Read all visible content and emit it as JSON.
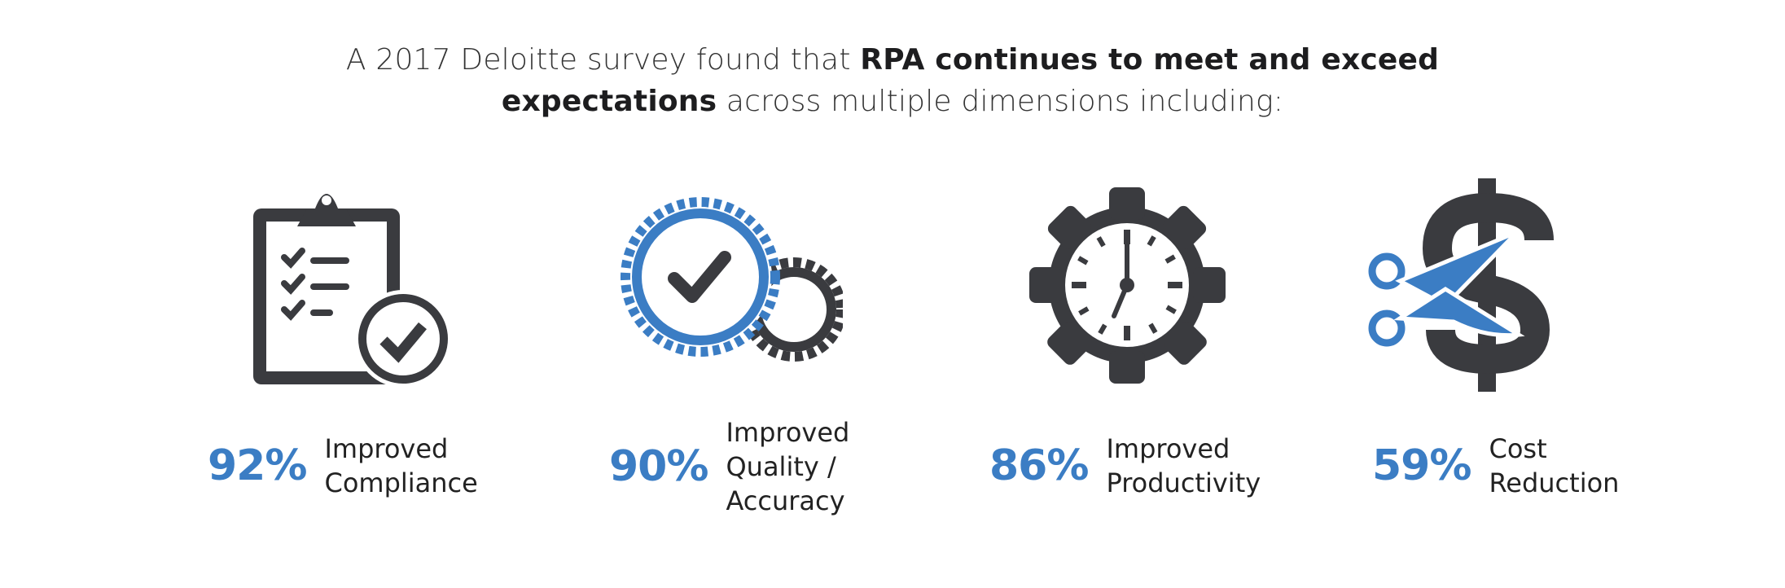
{
  "heading": {
    "line1_normal": "A 2017 Deloitte survey found that ",
    "line1_bold": "RPA continues to meet and exceed",
    "line2_bold": "expectations",
    "line2_normal": " across multiple dimensions including:"
  },
  "colors": {
    "accent": "#3b7dc4",
    "dark": "#3a3b3f"
  },
  "stats": [
    {
      "percent": "92%",
      "label_lines": [
        "Improved",
        "Compliance"
      ],
      "icon": "clipboard-check-icon"
    },
    {
      "percent": "90%",
      "label_lines": [
        "Improved",
        "Quality /",
        "Accuracy"
      ],
      "icon": "gear-check-icon"
    },
    {
      "percent": "86%",
      "label_lines": [
        "Improved",
        "Productivity"
      ],
      "icon": "gear-clock-icon"
    },
    {
      "percent": "59%",
      "label_lines": [
        "Cost",
        "Reduction"
      ],
      "icon": "scissors-dollar-icon"
    }
  ]
}
